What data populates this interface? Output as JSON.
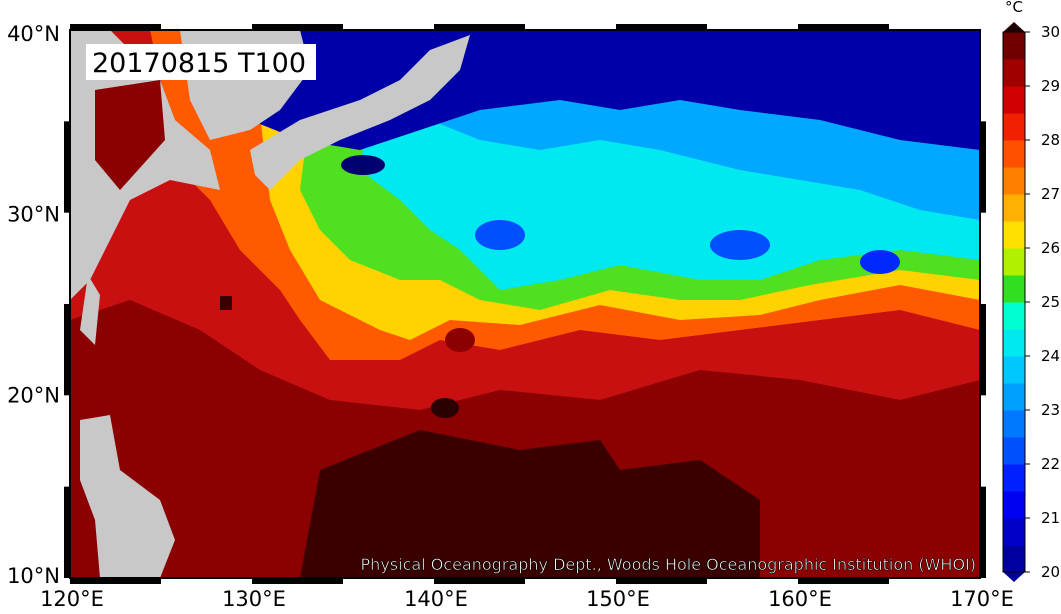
{
  "map": {
    "title": "20170815 T100",
    "lat_labels": [
      "40°N",
      "30°N",
      "20°N",
      "10°N"
    ],
    "lon_labels": [
      "120°E",
      "130°E",
      "140°E",
      "150°E",
      "160°E",
      "170°E"
    ],
    "credit": "Physical Oceanography Dept., Woods Hole Oceanographic Institution (WHOI)"
  },
  "colorbar": {
    "unit": "°C",
    "ticks": [
      20,
      21,
      22,
      23,
      24,
      25,
      26,
      27,
      28,
      29,
      30
    ]
  }
}
